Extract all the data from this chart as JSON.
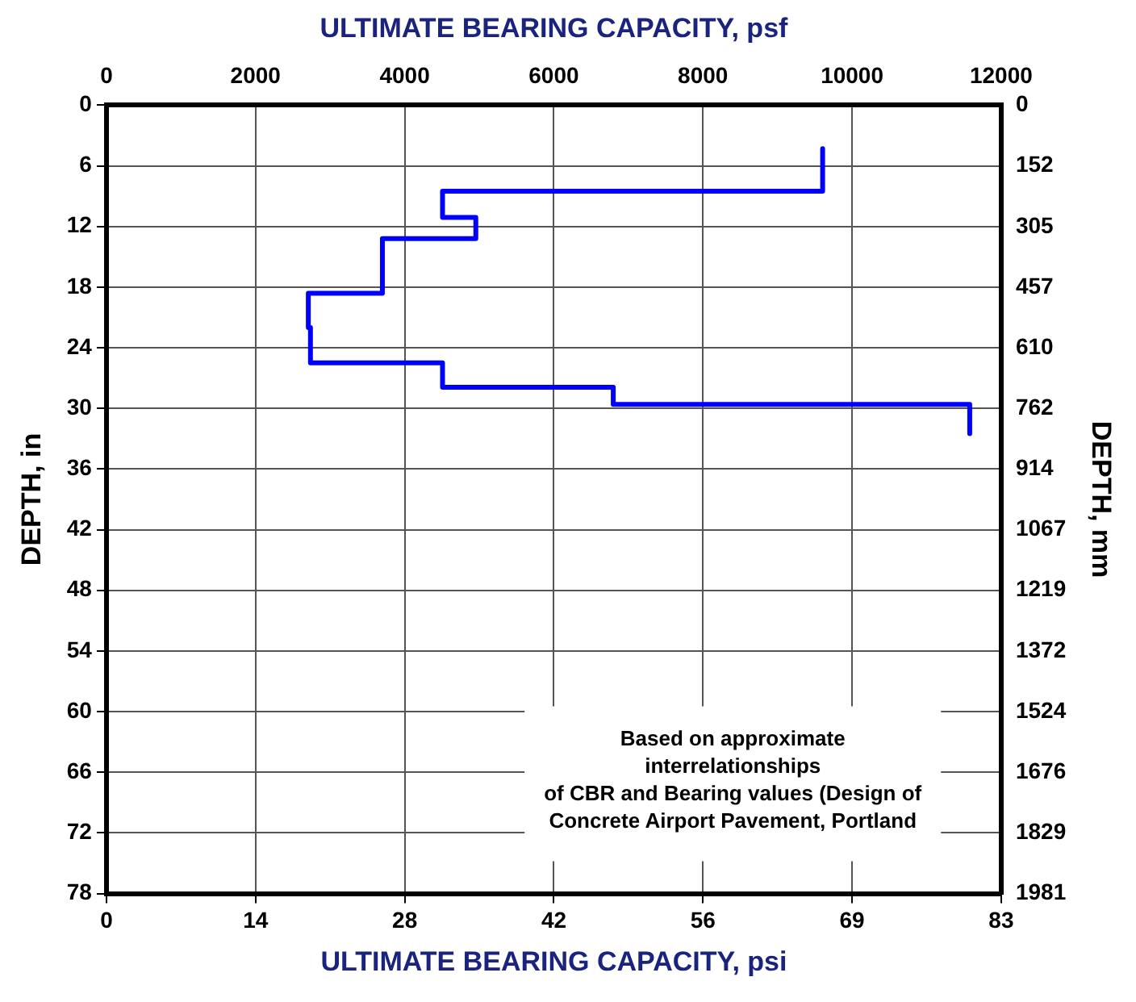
{
  "chart_data": {
    "type": "line",
    "xlabel": "ULTIMATE BEARING CAPACITY, psi",
    "x2label": "ULTIMATE BEARING CAPACITY, psf",
    "ylabel": "DEPTH, in",
    "y2label": "DEPTH, mm",
    "xlim": [
      0,
      83.33
    ],
    "xticks": [
      0,
      {
        "value": 13.89,
        "label": "14"
      },
      {
        "value": 27.78,
        "label": "28"
      },
      {
        "value": 41.67,
        "label": "42"
      },
      {
        "value": 55.56,
        "label": "56"
      },
      {
        "value": 69.44,
        "label": "69"
      },
      {
        "value": 83.33,
        "label": "83"
      }
    ],
    "x2lim": [
      0,
      12000
    ],
    "x2ticks": [
      0,
      2000,
      4000,
      6000,
      8000,
      10000,
      12000
    ],
    "ylim": [
      78,
      0
    ],
    "yticks": [
      0,
      6,
      12,
      18,
      24,
      30,
      36,
      42,
      48,
      54,
      60,
      66,
      72,
      78
    ],
    "y2lim": [
      1981,
      0
    ],
    "y2ticks": [
      0,
      152,
      305,
      457,
      610,
      762,
      914,
      1067,
      1219,
      1372,
      1524,
      1676,
      1829,
      1981
    ],
    "grid": true,
    "legend": false,
    "marker": "none",
    "line_style": "solid",
    "series": [
      {
        "color": "#0000ff",
        "x": [
          66.7,
          66.7,
          31.3,
          31.3,
          34.4,
          34.4,
          25.7,
          25.7,
          18.8,
          18.8,
          19.0,
          19.0,
          31.3,
          31.3,
          47.2,
          47.2,
          80.4,
          80.4
        ],
        "values": [
          4.3,
          8.5,
          8.5,
          11.1,
          11.1,
          13.2,
          13.2,
          18.6,
          18.6,
          22.0,
          22.0,
          25.5,
          25.5,
          27.9,
          27.9,
          29.6,
          29.6,
          32.5
        ]
      }
    ],
    "annotations": [
      "Based on approximate\ninterrelationships\nof CBR and Bearing values (Design of\nConcrete Airport Pavement, Portland"
    ]
  }
}
